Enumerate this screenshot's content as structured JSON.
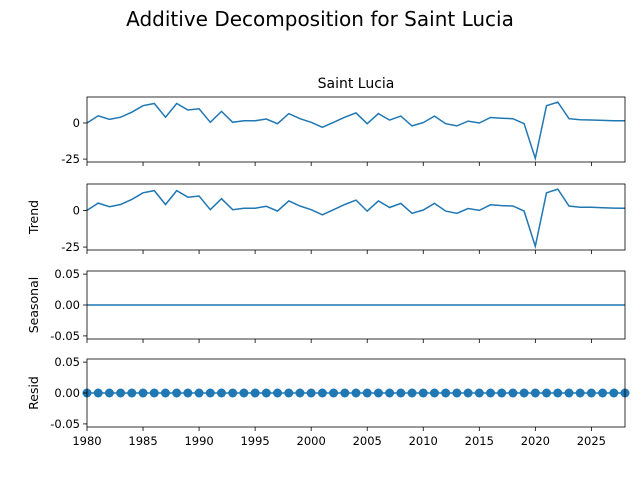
{
  "figure": {
    "suptitle": "Additive Decomposition for Saint Lucia"
  },
  "chart_data": [
    {
      "type": "line",
      "title": "Saint Lucia",
      "ylabel": "",
      "xlim": [
        1980,
        2028
      ],
      "ylim": [
        -27,
        18
      ],
      "yticks": [
        0,
        -25
      ],
      "color": "#1f77b4",
      "x": [
        1980,
        1981,
        1982,
        1983,
        1984,
        1985,
        1986,
        1987,
        1988,
        1989,
        1990,
        1991,
        1992,
        1993,
        1994,
        1995,
        1996,
        1997,
        1998,
        1999,
        2000,
        2001,
        2002,
        2003,
        2004,
        2005,
        2006,
        2007,
        2008,
        2009,
        2010,
        2011,
        2012,
        2013,
        2014,
        2015,
        2016,
        2017,
        2018,
        2019,
        2020,
        2021,
        2022,
        2023,
        2024,
        2025,
        2026,
        2027,
        2028
      ],
      "y": [
        0,
        5,
        2.5,
        4,
        7.5,
        12,
        13.5,
        4,
        13.5,
        9,
        9.8,
        0.5,
        8,
        0.5,
        1.5,
        1.5,
        2.8,
        -0.5,
        6.5,
        3,
        0.5,
        -3,
        0.5,
        4,
        7,
        -0.5,
        6.5,
        2,
        4.8,
        -2,
        0.3,
        4.8,
        -0.5,
        -2,
        1.3,
        0,
        3.8,
        3.3,
        3,
        -0.5,
        -24.5,
        12,
        14.5,
        3,
        2.2,
        2.1,
        1.8,
        1.6,
        1.5
      ]
    },
    {
      "type": "line",
      "title": "",
      "ylabel": "Trend",
      "xlim": [
        1980,
        2028
      ],
      "ylim": [
        -27,
        18
      ],
      "yticks": [
        0,
        -25
      ],
      "color": "#1f77b4",
      "x": [
        1980,
        1981,
        1982,
        1983,
        1984,
        1985,
        1986,
        1987,
        1988,
        1989,
        1990,
        1991,
        1992,
        1993,
        1994,
        1995,
        1996,
        1997,
        1998,
        1999,
        2000,
        2001,
        2002,
        2003,
        2004,
        2005,
        2006,
        2007,
        2008,
        2009,
        2010,
        2011,
        2012,
        2013,
        2014,
        2015,
        2016,
        2017,
        2018,
        2019,
        2020,
        2021,
        2022,
        2023,
        2024,
        2025,
        2026,
        2027,
        2028
      ],
      "y": [
        0,
        5,
        2.5,
        4,
        7.5,
        12,
        13.5,
        4,
        13.5,
        9,
        9.8,
        0.5,
        8,
        0.5,
        1.5,
        1.5,
        2.8,
        -0.5,
        6.5,
        3,
        0.5,
        -3,
        0.5,
        4,
        7,
        -0.5,
        6.5,
        2,
        4.8,
        -2,
        0.3,
        4.8,
        -0.5,
        -2,
        1.3,
        0,
        3.8,
        3.3,
        3,
        -0.5,
        -24.5,
        12,
        14.5,
        3,
        2.2,
        2.1,
        1.8,
        1.6,
        1.5
      ]
    },
    {
      "type": "line",
      "title": "",
      "ylabel": "Seasonal",
      "xlim": [
        1980,
        2028
      ],
      "ylim": [
        -0.055,
        0.055
      ],
      "yticks": [
        "0.05",
        "0.00",
        "-0.05"
      ],
      "color": "#1f77b4",
      "x": [
        1980,
        2028
      ],
      "y": [
        0,
        0
      ]
    },
    {
      "type": "scatter",
      "title": "",
      "ylabel": "Resid",
      "xlim": [
        1980,
        2028
      ],
      "ylim": [
        -0.055,
        0.055
      ],
      "yticks": [
        "0.05",
        "0.00",
        "-0.05"
      ],
      "color": "#1f77b4",
      "x": [
        1980,
        1981,
        1982,
        1983,
        1984,
        1985,
        1986,
        1987,
        1988,
        1989,
        1990,
        1991,
        1992,
        1993,
        1994,
        1995,
        1996,
        1997,
        1998,
        1999,
        2000,
        2001,
        2002,
        2003,
        2004,
        2005,
        2006,
        2007,
        2008,
        2009,
        2010,
        2011,
        2012,
        2013,
        2014,
        2015,
        2016,
        2017,
        2018,
        2019,
        2020,
        2021,
        2022,
        2023,
        2024,
        2025,
        2026,
        2027,
        2028
      ],
      "y": [
        0,
        0,
        0,
        0,
        0,
        0,
        0,
        0,
        0,
        0,
        0,
        0,
        0,
        0,
        0,
        0,
        0,
        0,
        0,
        0,
        0,
        0,
        0,
        0,
        0,
        0,
        0,
        0,
        0,
        0,
        0,
        0,
        0,
        0,
        0,
        0,
        0,
        0,
        0,
        0,
        0,
        0,
        0,
        0,
        0,
        0,
        0,
        0,
        0
      ],
      "xticks": [
        "1980",
        "1985",
        "1990",
        "1995",
        "2000",
        "2005",
        "2010",
        "2015",
        "2020",
        "2025"
      ]
    }
  ]
}
